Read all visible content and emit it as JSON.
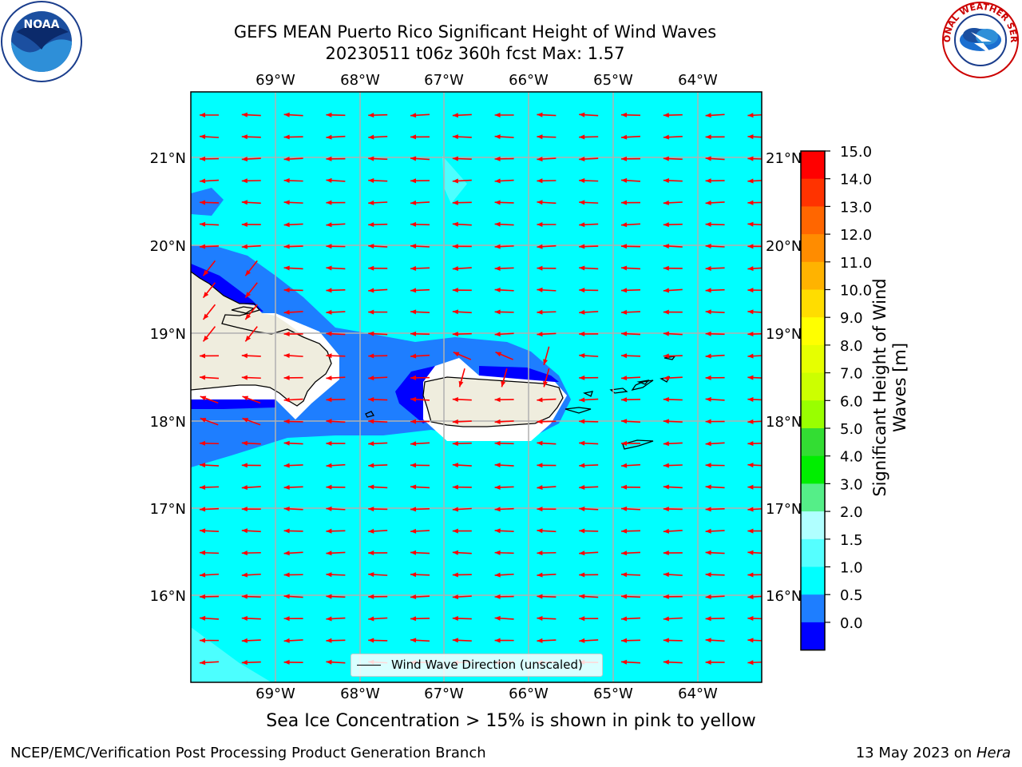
{
  "title": {
    "line1": "GEFS MEAN Puerto Rico Significant Height of Wind Waves",
    "line2": "20230511 t06z 360h fcst   Max: 1.57"
  },
  "map": {
    "lon_labels": [
      "69°W",
      "68°W",
      "67°W",
      "66°W",
      "65°W",
      "64°W"
    ],
    "lat_labels": [
      "21°N",
      "20°N",
      "19°N",
      "18°N",
      "17°N",
      "16°N"
    ],
    "legend_label": "Wind Wave Direction (unscaled)",
    "arrow_color": "#ff0000",
    "land_color": "#efedde",
    "gridline_color": "#b0b0b0",
    "fill_colors": {
      "0.0-0.5": "#0000ff",
      "0.5-1.0": "#1e7eff",
      "1.0-1.5": "#00ffff",
      "1.5-2.0": "#4cffff"
    }
  },
  "colorbar": {
    "label_line1": "Significant Height of Wind",
    "label_line2": "Waves [m]",
    "ticks": [
      "15.0",
      "14.0",
      "13.0",
      "12.0",
      "11.0",
      "10.0",
      "9.0",
      "8.0",
      "7.0",
      "6.0",
      "5.0",
      "4.0",
      "3.0",
      "2.0",
      "1.5",
      "1.0",
      "0.5",
      "0.0"
    ],
    "colors": [
      "#ff0000",
      "#ff3300",
      "#ff6600",
      "#ff8c00",
      "#ffb300",
      "#ffdd00",
      "#ffff00",
      "#e6ff00",
      "#ccff00",
      "#99ff00",
      "#33dd33",
      "#00ee00",
      "#55ee88",
      "#b0ffff",
      "#55ffff",
      "#00ffff",
      "#1e7eff",
      "#0000ff"
    ]
  },
  "ice_note": "Sea Ice Concentration > 15% is shown in pink to yellow",
  "footer": {
    "left": "NCEP/EMC/Verification Post Processing Product Generation Branch",
    "right_prefix": "13 May 2023 on ",
    "right_machine": "Hera"
  },
  "logos": {
    "noaa_text": "NOAA",
    "nws_text": "NATIONAL WEATHER SERVICE"
  }
}
